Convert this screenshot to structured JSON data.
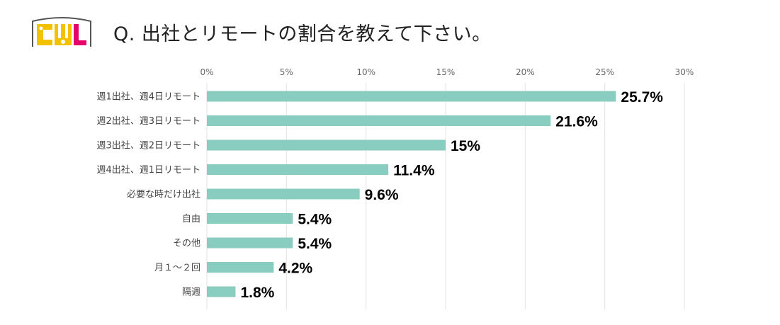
{
  "logo": {
    "text": "CWL",
    "colors": [
      "#f2c200",
      "#e5006a"
    ]
  },
  "header": {
    "title": "Q. 出社とリモートの割合を教えて下さい。"
  },
  "chart_data": {
    "type": "bar",
    "orientation": "horizontal",
    "title": "Q. 出社とリモートの割合を教えて下さい。",
    "categories": [
      "週1出社、週4日リモート",
      "週2出社、週3日リモート",
      "週3出社、週2日リモート",
      "週4出社、週1日リモート",
      "必要な時だけ出社",
      "自由",
      "その他",
      "月１～２回",
      "隔週"
    ],
    "values": [
      25.7,
      21.6,
      15,
      11.4,
      9.6,
      5.4,
      5.4,
      4.2,
      1.8
    ],
    "data_labels": [
      "25.7%",
      "21.6%",
      "15%",
      "11.4%",
      "9.6%",
      "5.4%",
      "5.4%",
      "4.2%",
      "1.8%"
    ],
    "xlim": [
      0,
      30
    ],
    "xticks": [
      0,
      5,
      10,
      15,
      20,
      25,
      30
    ],
    "xtick_labels": [
      "0%",
      "5%",
      "10%",
      "15%",
      "20%",
      "25%",
      "30%"
    ],
    "axis_position": "top",
    "gridlines": true,
    "bar_color": "#88cdbf",
    "grid_color": "#e3e3e3"
  }
}
